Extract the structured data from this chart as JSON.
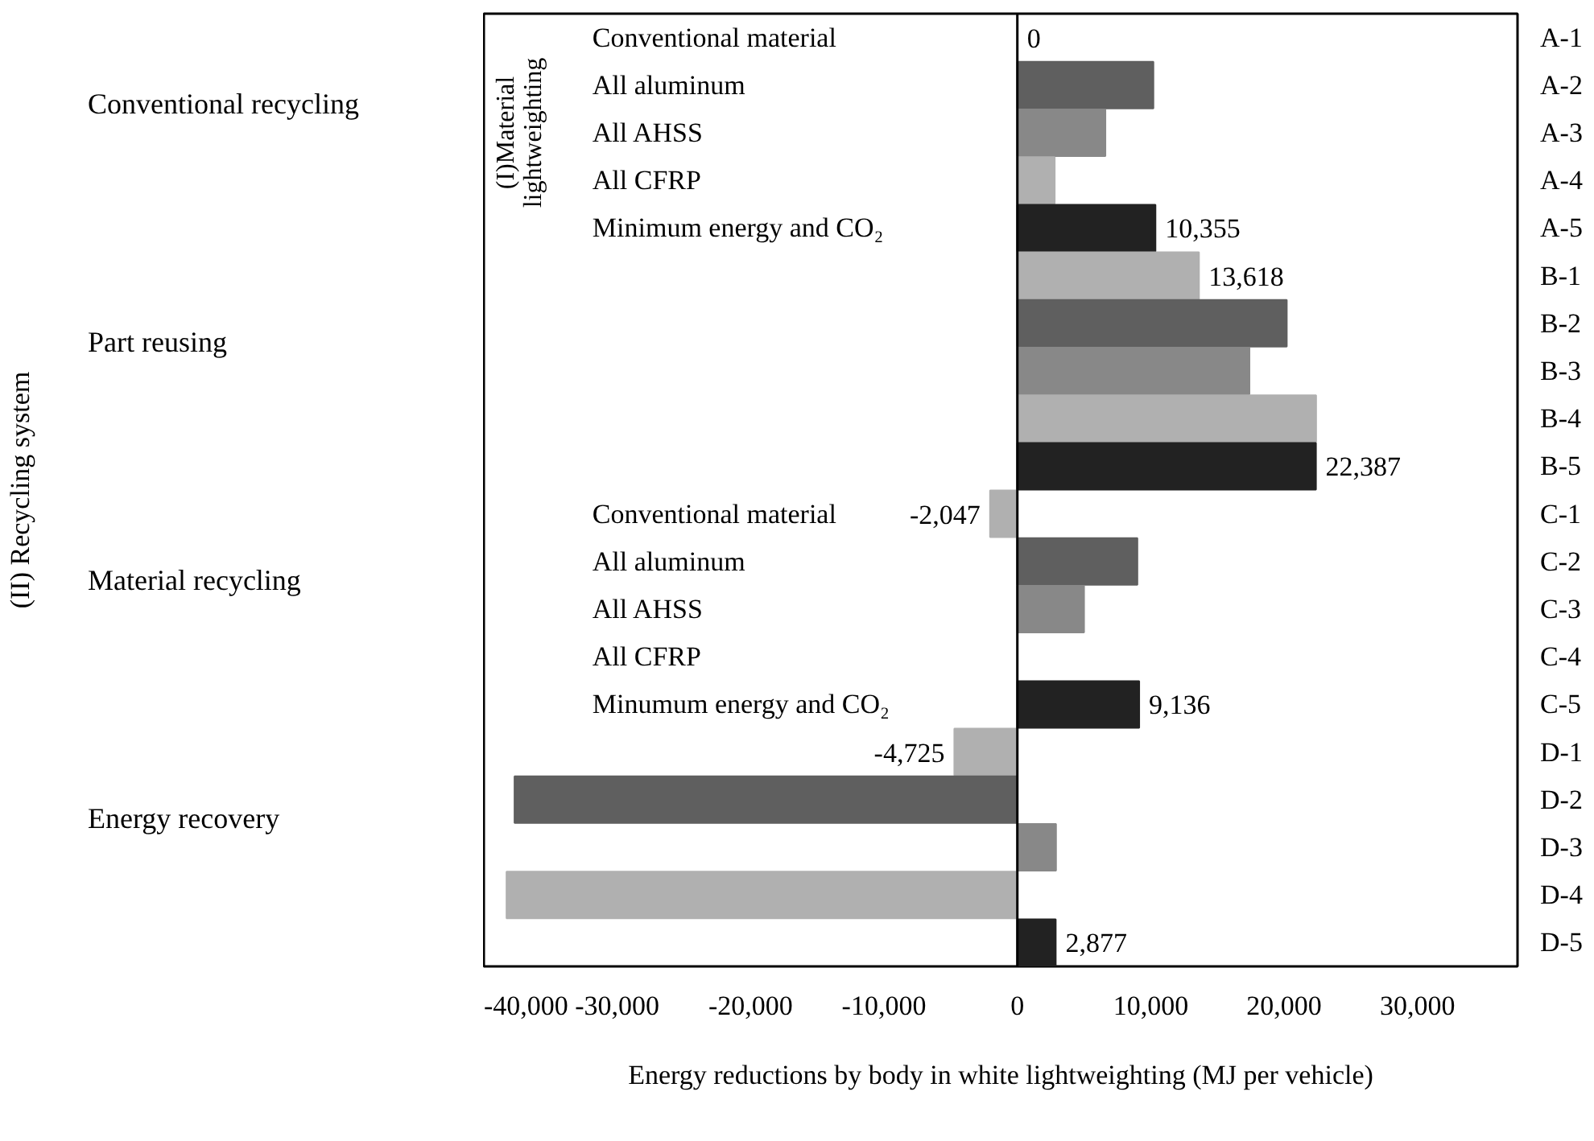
{
  "chart_data": {
    "type": "bar",
    "orientation": "horizontal",
    "categories": [
      "A-1",
      "A-2",
      "A-3",
      "A-4",
      "A-5",
      "B-1",
      "B-2",
      "B-3",
      "B-4",
      "B-5",
      "C-1",
      "C-2",
      "C-3",
      "C-4",
      "C-5",
      "D-1",
      "D-2",
      "D-3",
      "D-4",
      "D-5"
    ],
    "values": [
      0,
      10200,
      6600,
      2800,
      10355,
      13618,
      20200,
      17400,
      22400,
      22387,
      -2047,
      9000,
      5000,
      0,
      9136,
      -4725,
      -37700,
      2900,
      -38300,
      2877
    ],
    "colors": [
      "#b0b0b0",
      "#5f5f5f",
      "#888888",
      "#b0b0b0",
      "#222222",
      "#b0b0b0",
      "#5f5f5f",
      "#888888",
      "#b0b0b0",
      "#222222",
      "#b0b0b0",
      "#5f5f5f",
      "#888888",
      "#b0b0b0",
      "#222222",
      "#b0b0b0",
      "#5f5f5f",
      "#888888",
      "#b0b0b0",
      "#222222"
    ],
    "value_labels": [
      "0",
      null,
      null,
      null,
      "10,355",
      "13,618",
      null,
      null,
      null,
      "22,387",
      "-2,047",
      null,
      null,
      null,
      "9,136",
      "-4,725",
      null,
      null,
      null,
      "2,877"
    ],
    "xlim": [
      -40000,
      37500
    ],
    "xticks": [
      {
        "value": -40000,
        "label": "-40,000"
      },
      {
        "value": -30000,
        "label": "-30,000"
      },
      {
        "value": -20000,
        "label": "-20,000"
      },
      {
        "value": -10000,
        "label": "-10,000"
      },
      0,
      {
        "value": 10000,
        "label": "10,000"
      },
      {
        "value": 20000,
        "label": "20,000"
      },
      {
        "value": 30000,
        "label": "30,000"
      }
    ],
    "xlabel": "Energy reductions by body in white lightweighting (MJ per vehicle)",
    "annotations": [
      "Conventional recycling",
      "Part reusing",
      "Material recycling",
      "Energy recovery",
      "(I)Material\nlightweighting",
      "Conventional material",
      "All aluminum",
      "All AHSS",
      "All CFRP",
      "Minimum energy and CO₂",
      "Conventional material",
      "All aluminum",
      "All AHSS",
      "All CFRP",
      "Minumum energy and CO₂",
      "(II) Recycling system"
    ]
  }
}
